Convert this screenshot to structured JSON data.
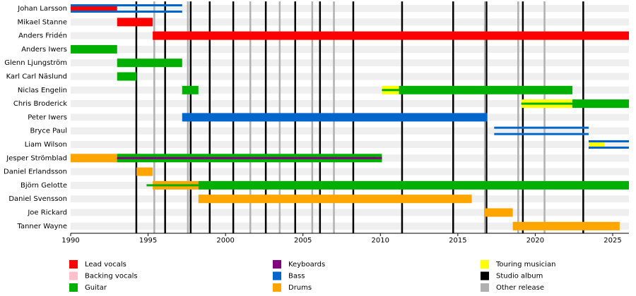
{
  "chart_data": {
    "type": "timeline",
    "xlim": [
      1990,
      2026.05
    ],
    "xticks": [
      1990,
      1995,
      2000,
      2005,
      2010,
      2015,
      2020,
      2025
    ],
    "roles": [
      {
        "name": "Lead vocals",
        "color": "#ff0000"
      },
      {
        "name": "Backing vocals",
        "color": "#ffc0cb"
      },
      {
        "name": "Guitar",
        "color": "#00b000"
      },
      {
        "name": "Keyboards",
        "color": "#800080"
      },
      {
        "name": "Bass",
        "color": "#0066cc"
      },
      {
        "name": "Drums",
        "color": "#ffa500"
      },
      {
        "name": "Touring musician",
        "color": "#ffff00"
      }
    ],
    "lines": [
      {
        "name": "Studio album",
        "color": "#000000",
        "x": [
          1994.24,
          1996.1,
          1997.75,
          1998.98,
          2000.5,
          2002.6,
          2004.5,
          2006.1,
          2008.25,
          2011.4,
          2014.7,
          2016.85,
          2019.2,
          2023.1
        ]
      },
      {
        "name": "Other release",
        "color": "#b0b0b0",
        "x": [
          1995.4,
          1997.57,
          2001.6,
          2003.5,
          2005.6,
          2007.0,
          2016.75,
          2018.9,
          2020.6
        ]
      }
    ],
    "members": [
      {
        "name": "Johan Larsson",
        "bars": [
          {
            "role": "Lead vocals",
            "style": "full",
            "start": 1990,
            "end": 1993.0
          },
          {
            "role": "Bass",
            "style": "outline",
            "start": 1990,
            "end": 1997.2
          }
        ]
      },
      {
        "name": "Mikael Stanne",
        "bars": [
          {
            "role": "Lead vocals",
            "style": "full",
            "start": 1993.0,
            "end": 1995.3
          }
        ]
      },
      {
        "name": "Anders Fridén",
        "bars": [
          {
            "role": "Lead vocals",
            "style": "full",
            "start": 1995.3,
            "end": 2026.05
          }
        ]
      },
      {
        "name": "Anders Iwers",
        "bars": [
          {
            "role": "Guitar",
            "style": "full",
            "start": 1990,
            "end": 1993.0
          }
        ]
      },
      {
        "name": "Glenn Ljungström",
        "bars": [
          {
            "role": "Guitar",
            "style": "full",
            "start": 1993.0,
            "end": 1997.2
          }
        ]
      },
      {
        "name": "Karl Carl Näslund",
        "bars": [
          {
            "role": "Guitar",
            "style": "full",
            "start": 1993.0,
            "end": 1994.25
          }
        ]
      },
      {
        "name": "Niclas Engelin",
        "bars": [
          {
            "role": "Guitar",
            "style": "full",
            "start": 1997.2,
            "end": 1998.25
          },
          {
            "role": "Touring musician",
            "style": "full",
            "start": 2010.1,
            "end": 2011.2
          },
          {
            "role": "Guitar",
            "style": "thin",
            "start": 2010.1,
            "end": 2011.2
          },
          {
            "role": "Guitar",
            "style": "full",
            "start": 2011.2,
            "end": 2022.4
          }
        ]
      },
      {
        "name": "Chris Broderick",
        "bars": [
          {
            "role": "Touring musician",
            "style": "full",
            "start": 2019.1,
            "end": 2022.4
          },
          {
            "role": "Guitar",
            "style": "thin",
            "start": 2019.1,
            "end": 2022.4
          },
          {
            "role": "Guitar",
            "style": "full",
            "start": 2022.4,
            "end": 2026.05
          }
        ]
      },
      {
        "name": "Peter Iwers",
        "bars": [
          {
            "role": "Bass",
            "style": "full",
            "start": 1997.2,
            "end": 2016.9
          }
        ]
      },
      {
        "name": "Bryce Paul",
        "bars": [
          {
            "role": "Bass",
            "style": "outline",
            "start": 2017.35,
            "end": 2023.45
          }
        ]
      },
      {
        "name": "Liam Wilson",
        "bars": [
          {
            "role": "Touring musician",
            "style": "full",
            "start": 2023.45,
            "end": 2024.45
          },
          {
            "role": "Bass",
            "style": "outline",
            "start": 2023.45,
            "end": 2026.05
          }
        ]
      },
      {
        "name": "Jesper Strömblad",
        "bars": [
          {
            "role": "Drums",
            "style": "full",
            "start": 1990,
            "end": 1994.25
          },
          {
            "role": "Guitar",
            "style": "full",
            "start": 1993.0,
            "end": 2010.1
          },
          {
            "role": "Keyboards",
            "style": "thin",
            "start": 1993.0,
            "end": 2010.1
          }
        ]
      },
      {
        "name": "Daniel Erlandsson",
        "bars": [
          {
            "role": "Drums",
            "style": "full",
            "start": 1994.25,
            "end": 1995.3
          }
        ]
      },
      {
        "name": "Björn Gelotte",
        "bars": [
          {
            "role": "Drums",
            "style": "full",
            "start": 1995.3,
            "end": 1998.25
          },
          {
            "role": "Guitar",
            "style": "thin",
            "start": 1994.9,
            "end": 1998.25
          },
          {
            "role": "Guitar",
            "style": "full",
            "start": 1998.25,
            "end": 2026.05
          }
        ]
      },
      {
        "name": "Daniel Svensson",
        "bars": [
          {
            "role": "Drums",
            "style": "full",
            "start": 1998.25,
            "end": 2015.9
          }
        ]
      },
      {
        "name": "Joe Rickard",
        "bars": [
          {
            "role": "Drums",
            "style": "full",
            "start": 2016.7,
            "end": 2018.55
          }
        ]
      },
      {
        "name": "Tanner Wayne",
        "bars": [
          {
            "role": "Drums",
            "style": "full",
            "start": 2018.55,
            "end": 2025.45
          }
        ]
      }
    ]
  }
}
